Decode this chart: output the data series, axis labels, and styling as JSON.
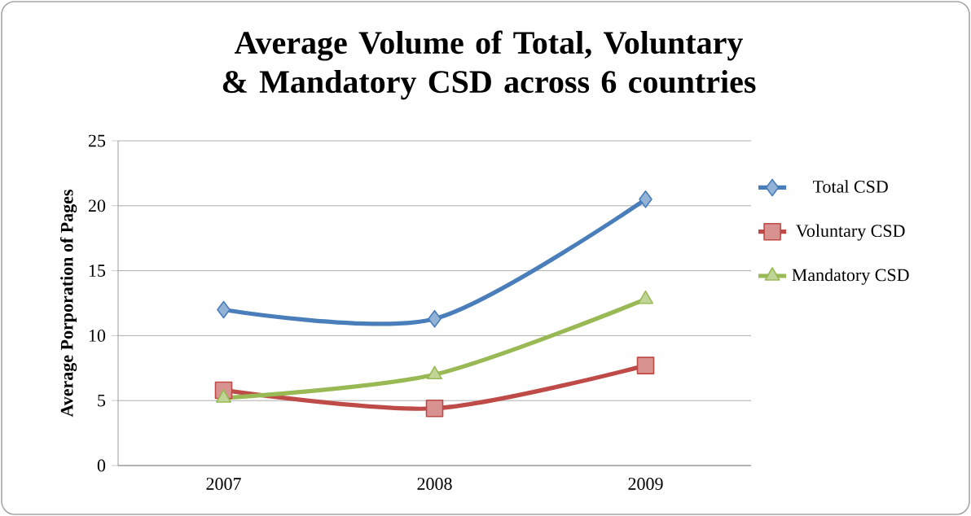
{
  "chart_data": {
    "type": "line",
    "title": "Average Volume of Total, Voluntary & Mandatory CSD across 6 countries",
    "ylabel": "Average Porporation of Pages",
    "categories": [
      "2007",
      "2008",
      "2009"
    ],
    "series": [
      {
        "name": "Total CSD",
        "color": "#4a7ebb",
        "marker": "diamond",
        "values": [
          12,
          11.3,
          20.5
        ]
      },
      {
        "name": "Voluntary CSD",
        "color": "#be4b48",
        "marker": "square",
        "values": [
          5.8,
          4.4,
          7.7
        ]
      },
      {
        "name": "Mandatory CSD",
        "color": "#98b954",
        "marker": "triangle",
        "values": [
          5.2,
          7.0,
          12.8
        ]
      }
    ],
    "ylim": [
      0,
      25
    ],
    "yticks": [
      0,
      5,
      10,
      15,
      20,
      25
    ],
    "grid": "y",
    "legend": "right",
    "line_style": "solid"
  }
}
